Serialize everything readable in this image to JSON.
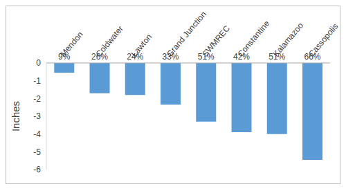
{
  "chart_data": {
    "type": "bar",
    "categories": [
      "Mendon",
      "Coldwater",
      "Lawton",
      "Grand Junction",
      "SWMREC",
      "Constantine",
      "Kalamazoo",
      "Cassopolis"
    ],
    "values": [
      -0.55,
      -1.7,
      -1.8,
      -2.35,
      -3.3,
      -3.9,
      -4.0,
      -5.45
    ],
    "labels": [
      "9%",
      "26%",
      "24%",
      "33%",
      "51%",
      "42%",
      "51%",
      "66%"
    ],
    "y_label": "Inches",
    "color": "#5b9bd5",
    "ylim": [
      -6,
      0
    ],
    "yticks": [
      0,
      -1,
      -2,
      -3,
      -4,
      -5,
      -6
    ],
    "grid": false
  }
}
